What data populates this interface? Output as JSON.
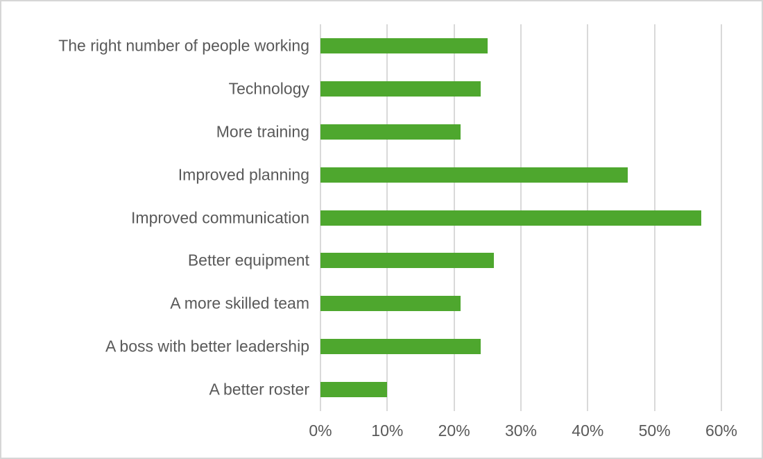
{
  "chart_data": {
    "type": "bar",
    "orientation": "horizontal",
    "title": "",
    "xlabel": "",
    "ylabel": "",
    "categories": [
      "The right number of people working",
      "Technology",
      "More training",
      "Improved planning",
      "Improved communication",
      "Better equipment",
      "A more skilled team",
      "A boss with better leadership",
      "A better roster"
    ],
    "values": [
      25,
      24,
      21,
      46,
      57,
      26,
      21,
      24,
      10
    ],
    "unit": "%",
    "xlim": [
      0,
      60
    ],
    "x_ticks": [
      "0%",
      "10%",
      "20%",
      "30%",
      "40%",
      "50%",
      "60%"
    ],
    "x_tick_values": [
      0,
      10,
      20,
      30,
      40,
      50,
      60
    ],
    "grid": true,
    "legend": false,
    "colors": {
      "bar": "#4ea72e",
      "gridline": "#d9d9d9",
      "text": "#595959",
      "frame_border": "#d6d6d6",
      "background": "#ffffff"
    }
  }
}
